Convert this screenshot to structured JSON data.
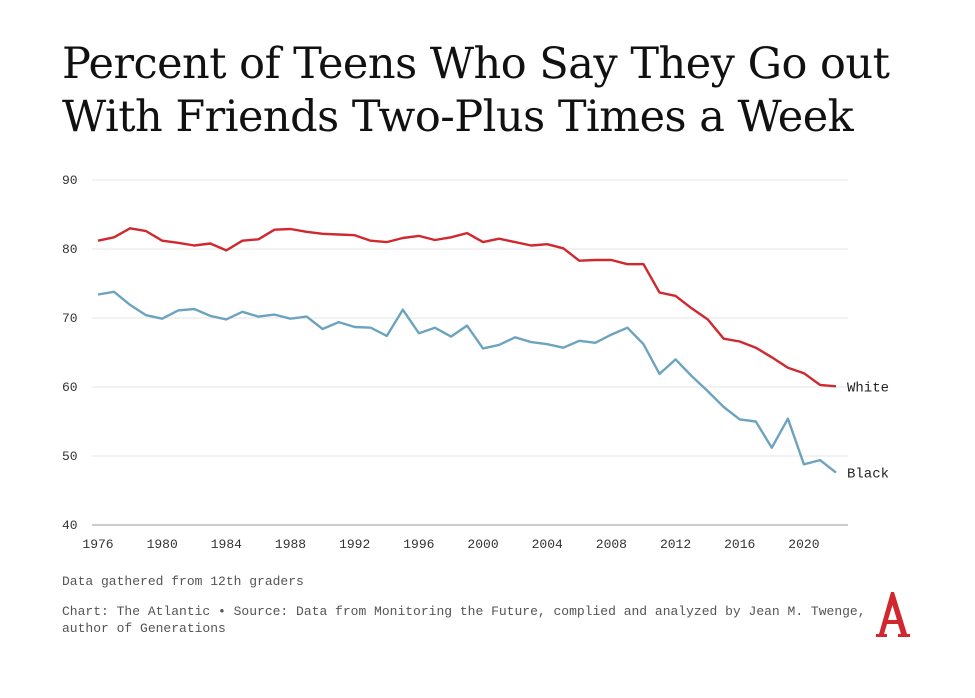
{
  "title": "Percent of Teens Who Say They Go out With Friends Two-Plus Times a Week",
  "footnote": "Data gathered from 12th graders",
  "credit": "Chart: The Atlantic • Source: Data from Monitoring the Future, complied and analyzed by Jean M. Twenge, author of Generations",
  "logo_letter": "A",
  "chart_data": {
    "type": "line",
    "title": "Percent of Teens Who Say They Go out With Friends Two-Plus Times a Week",
    "xlabel": "",
    "ylabel": "",
    "xlim": [
      1976,
      2022
    ],
    "ylim": [
      40,
      90
    ],
    "x_ticks": [
      1976,
      1980,
      1984,
      1988,
      1992,
      1996,
      2000,
      2004,
      2008,
      2012,
      2016,
      2020
    ],
    "y_ticks": [
      40,
      50,
      60,
      70,
      80,
      90
    ],
    "grid": true,
    "legend": "inline labels at line ends",
    "x": [
      1976,
      1977,
      1978,
      1979,
      1980,
      1981,
      1982,
      1983,
      1984,
      1985,
      1986,
      1987,
      1988,
      1989,
      1990,
      1991,
      1992,
      1993,
      1994,
      1995,
      1996,
      1997,
      1998,
      1999,
      2000,
      2001,
      2002,
      2003,
      2004,
      2005,
      2006,
      2007,
      2008,
      2009,
      2010,
      2011,
      2012,
      2013,
      2014,
      2015,
      2016,
      2017,
      2018,
      2019,
      2020,
      2021,
      2022
    ],
    "series": [
      {
        "name": "White",
        "color": "#d0282e",
        "values": [
          81.2,
          81.7,
          83.0,
          82.6,
          81.2,
          80.9,
          80.5,
          80.8,
          79.8,
          81.2,
          81.4,
          82.8,
          82.9,
          82.5,
          82.2,
          82.1,
          82.0,
          81.2,
          81.0,
          81.6,
          81.9,
          81.3,
          81.7,
          82.3,
          81.0,
          81.5,
          81.0,
          80.5,
          80.7,
          80.1,
          78.3,
          78.4,
          78.4,
          77.8,
          77.8,
          73.7,
          73.2,
          71.4,
          69.8,
          67.0,
          66.6,
          65.7,
          64.3,
          62.8,
          62.0,
          60.3,
          60.1
        ]
      },
      {
        "name": "Black",
        "color": "#6ca4bf",
        "values": [
          73.4,
          73.8,
          71.9,
          70.4,
          69.9,
          71.1,
          71.3,
          70.3,
          69.8,
          70.9,
          70.2,
          70.5,
          69.9,
          70.2,
          68.4,
          69.4,
          68.7,
          68.6,
          67.4,
          71.2,
          67.8,
          68.6,
          67.3,
          68.9,
          65.6,
          66.1,
          67.2,
          66.5,
          66.2,
          65.7,
          66.7,
          66.4,
          67.6,
          68.6,
          66.2,
          61.9,
          64.0,
          61.6,
          59.4,
          57.1,
          55.3,
          55.0,
          51.2,
          55.4,
          48.8,
          49.4,
          47.6
        ]
      }
    ]
  }
}
